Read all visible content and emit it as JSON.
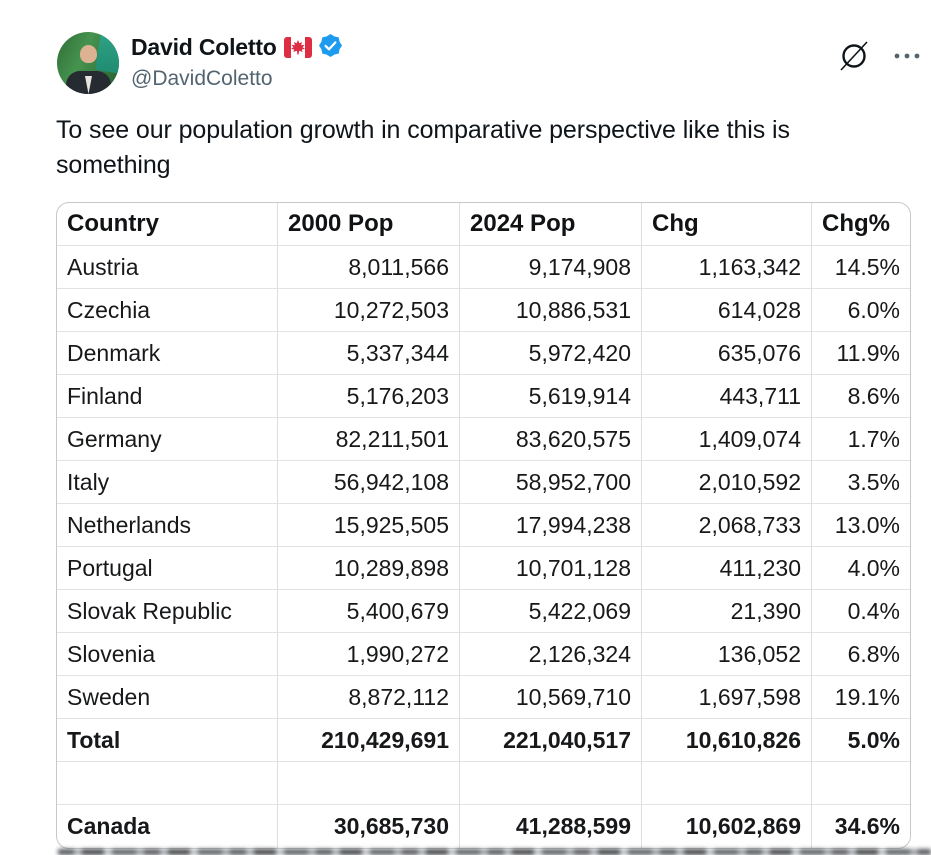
{
  "colors": {
    "verified_blue": "#1d9bf0",
    "flag_red": "#dd2e44",
    "muted_gray": "#536471"
  },
  "header": {
    "display_name": "David Coletto",
    "handle": "@DavidColetto"
  },
  "tweet": {
    "lines": [
      "To see our population growth in comparative perspective like this is",
      "something"
    ]
  },
  "table": {
    "headers": [
      "Country",
      "2000 Pop",
      "2024 Pop",
      "Chg",
      "Chg%"
    ],
    "rows": [
      {
        "bold": false,
        "cells": [
          "Austria",
          "8,011,566",
          "9,174,908",
          "1,163,342",
          "14.5%"
        ]
      },
      {
        "bold": false,
        "cells": [
          "Czechia",
          "10,272,503",
          "10,886,531",
          "614,028",
          "6.0%"
        ]
      },
      {
        "bold": false,
        "cells": [
          "Denmark",
          "5,337,344",
          "5,972,420",
          "635,076",
          "11.9%"
        ]
      },
      {
        "bold": false,
        "cells": [
          "Finland",
          "5,176,203",
          "5,619,914",
          "443,711",
          "8.6%"
        ]
      },
      {
        "bold": false,
        "cells": [
          "Germany",
          "82,211,501",
          "83,620,575",
          "1,409,074",
          "1.7%"
        ]
      },
      {
        "bold": false,
        "cells": [
          "Italy",
          "56,942,108",
          "58,952,700",
          "2,010,592",
          "3.5%"
        ]
      },
      {
        "bold": false,
        "cells": [
          "Netherlands",
          "15,925,505",
          "17,994,238",
          "2,068,733",
          "13.0%"
        ]
      },
      {
        "bold": false,
        "cells": [
          "Portugal",
          "10,289,898",
          "10,701,128",
          "411,230",
          "4.0%"
        ]
      },
      {
        "bold": false,
        "cells": [
          "Slovak Republic",
          "5,400,679",
          "5,422,069",
          "21,390",
          "0.4%"
        ]
      },
      {
        "bold": false,
        "cells": [
          "Slovenia",
          "1,990,272",
          "2,126,324",
          "136,052",
          "6.8%"
        ]
      },
      {
        "bold": false,
        "cells": [
          "Sweden",
          "8,872,112",
          "10,569,710",
          "1,697,598",
          "19.1%"
        ]
      },
      {
        "bold": true,
        "cells": [
          "Total",
          "210,429,691",
          "221,040,517",
          "10,610,826",
          "5.0%"
        ]
      },
      {
        "bold": false,
        "cells": [
          "",
          "",
          "",
          "",
          ""
        ]
      },
      {
        "bold": true,
        "cells": [
          "Canada",
          "30,685,730",
          "41,288,599",
          "10,602,869",
          "34.6%"
        ]
      }
    ]
  }
}
